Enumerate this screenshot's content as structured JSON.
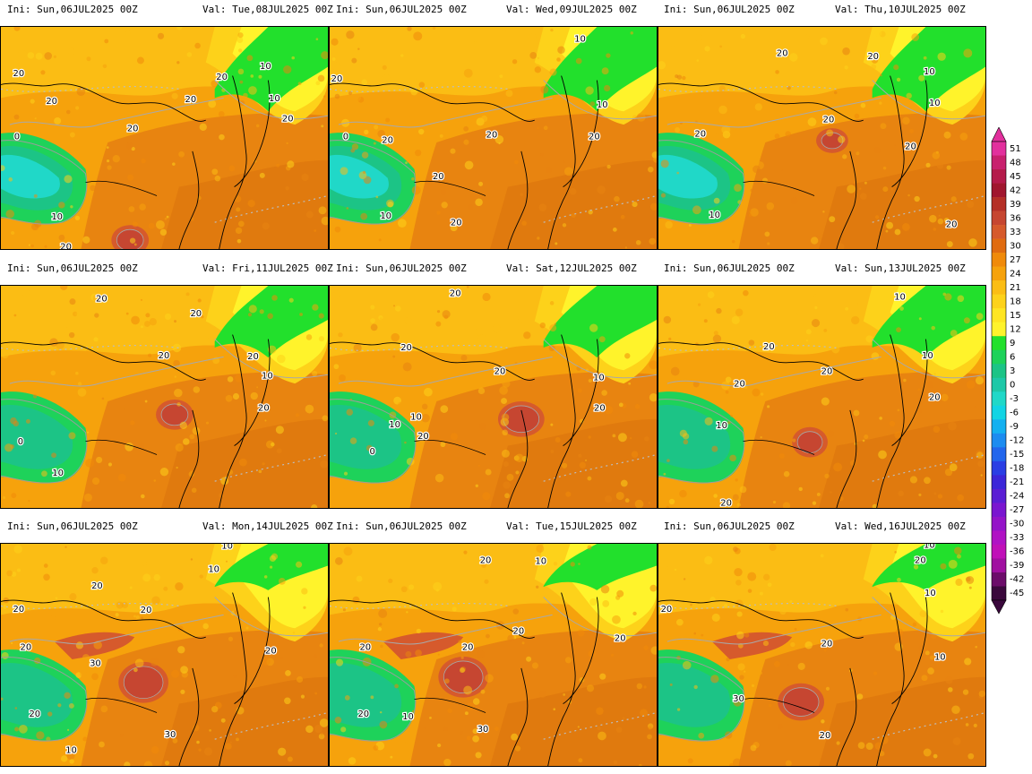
{
  "panels": [
    {
      "ini": "Ini: Sun,06JUL2025 00Z",
      "val": "Val: Tue,08JUL2025 00Z",
      "labels": [
        "20",
        "20",
        "20",
        "20",
        "20",
        "10",
        "10",
        "20",
        "0",
        "10",
        "20"
      ]
    },
    {
      "ini": "Ini: Sun,06JUL2025 00Z",
      "val": "Val: Wed,09JUL2025 00Z",
      "labels": [
        "10",
        "20",
        "20",
        "10",
        "20",
        "20",
        "0",
        "20",
        "20",
        "10"
      ]
    },
    {
      "ini": "Ini: Sun,06JUL2025 00Z",
      "val": "Val: Thu,10JUL2025 00Z",
      "labels": [
        "20",
        "20",
        "10",
        "20",
        "10",
        "20",
        "20",
        "20",
        "10"
      ]
    },
    {
      "ini": "Ini: Sun,06JUL2025 00Z",
      "val": "Val: Fri,11JUL2025 00Z",
      "labels": [
        "20",
        "20",
        "20",
        "20",
        "10",
        "20",
        "0",
        "10"
      ]
    },
    {
      "ini": "Ini: Sun,06JUL2025 00Z",
      "val": "Val: Sat,12JUL2025 00Z",
      "labels": [
        "20",
        "20",
        "10",
        "20",
        "10",
        "20",
        "20",
        "10",
        "0"
      ]
    },
    {
      "ini": "Ini: Sun,06JUL2025 00Z",
      "val": "Val: Sun,13JUL2025 00Z",
      "labels": [
        "10",
        "20",
        "20",
        "10",
        "20",
        "20",
        "20",
        "10"
      ]
    },
    {
      "ini": "Ini: Sun,06JUL2025 00Z",
      "val": "Val: Mon,14JUL2025 00Z",
      "labels": [
        "10",
        "10",
        "20",
        "20",
        "20",
        "20",
        "30",
        "20",
        "30",
        "20",
        "10"
      ]
    },
    {
      "ini": "Ini: Sun,06JUL2025 00Z",
      "val": "Val: Tue,15JUL2025 00Z",
      "labels": [
        "20",
        "10",
        "20",
        "20",
        "20",
        "20",
        "30",
        "20",
        "10"
      ]
    },
    {
      "ini": "Ini: Sun,06JUL2025 00Z",
      "val": "Val: Wed,16JUL2025 00Z",
      "labels": [
        "10",
        "20",
        "10",
        "20",
        "20",
        "10",
        "30",
        "20"
      ]
    }
  ],
  "colorbar": {
    "labels": [
      "51",
      "48",
      "45",
      "42",
      "39",
      "36",
      "33",
      "30",
      "27",
      "24",
      "21",
      "18",
      "15",
      "12",
      "9",
      "6",
      "3",
      "0",
      "-3",
      "-6",
      "-9",
      "-12",
      "-15",
      "-18",
      "-21",
      "-24",
      "-27",
      "-30",
      "-33",
      "-36",
      "-39",
      "-42",
      "-45"
    ],
    "colors": [
      "#e2309d",
      "#c8206e",
      "#b41a4a",
      "#a0162e",
      "#b42f26",
      "#c64631",
      "#d65a2c",
      "#e06b10",
      "#f08a0a",
      "#f6a20c",
      "#fbbd14",
      "#fdd21a",
      "#ffe522",
      "#fff32b",
      "#22e02c",
      "#1ed25a",
      "#1cc486",
      "#1ec8a8",
      "#20d8c8",
      "#12d4e4",
      "#14b0f0",
      "#1c8cf0",
      "#2266ec",
      "#2a3ee4",
      "#3c26d8",
      "#5a1ed4",
      "#7a16d0",
      "#9414c8",
      "#b012c4",
      "#c010b8",
      "#a010a0",
      "#6c0c6a",
      "#3a083c"
    ]
  }
}
